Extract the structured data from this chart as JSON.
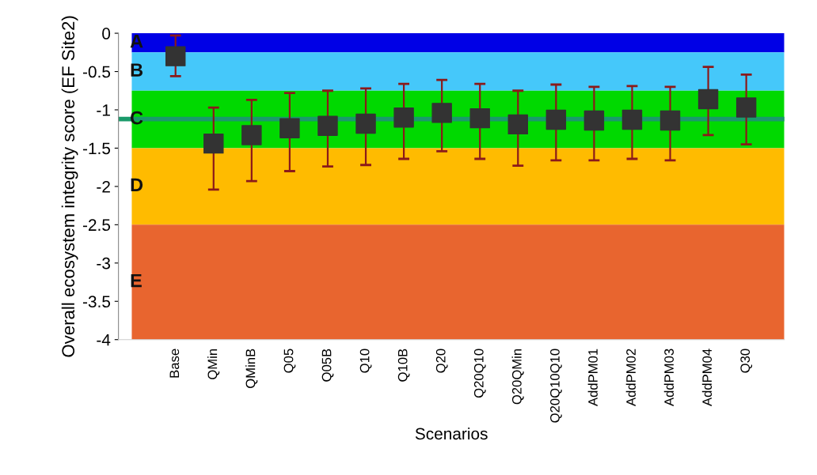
{
  "chart_data": {
    "type": "scatter",
    "xlabel": "Scenarios",
    "ylabel": "Overall ecosystem integrity score (EF Site2)",
    "categories": [
      "Base",
      "QMin",
      "QMinB",
      "Q05",
      "Q05B",
      "Q10",
      "Q10B",
      "Q20",
      "Q20Q10",
      "Q20QMin",
      "Q20Q10Q10",
      "AddPM01",
      "AddPM02",
      "AddPM03",
      "AddPM04",
      "Q30"
    ],
    "series": [
      {
        "color": "#333333",
        "marker": "square",
        "values": [
          -0.3,
          -1.44,
          -1.33,
          -1.24,
          -1.21,
          -1.18,
          -1.1,
          -1.04,
          -1.11,
          -1.19,
          -1.13,
          -1.14,
          -1.13,
          -1.14,
          -0.86,
          -0.97
        ],
        "errors": [
          [
            -0.56,
            -0.03
          ],
          [
            -2.04,
            -0.97
          ],
          [
            -1.93,
            -0.87
          ],
          [
            -1.8,
            -0.78
          ],
          [
            -1.74,
            -0.75
          ],
          [
            -1.72,
            -0.72
          ],
          [
            -1.64,
            -0.66
          ],
          [
            -1.54,
            -0.61
          ],
          [
            -1.64,
            -0.66
          ],
          [
            -1.73,
            -0.75
          ],
          [
            -1.66,
            -0.67
          ],
          [
            -1.66,
            -0.7
          ],
          [
            -1.64,
            -0.69
          ],
          [
            -1.66,
            -0.7
          ],
          [
            -1.33,
            -0.44
          ],
          [
            -1.45,
            -0.54
          ]
        ]
      }
    ],
    "ylim": [
      -4,
      0
    ],
    "yticks": [
      0,
      -0.5,
      -1,
      -1.5,
      -2,
      -2.5,
      -3,
      -3.5,
      -4
    ],
    "bands": [
      {
        "axis": "y",
        "from": 0,
        "to": -0.25,
        "label": "A",
        "color": "#0000e6"
      },
      {
        "axis": "y",
        "from": -0.25,
        "to": -0.75,
        "label": "B",
        "color": "#45c8fa"
      },
      {
        "axis": "y",
        "from": -0.75,
        "to": -1.5,
        "label": "C",
        "color": "#00d900"
      },
      {
        "axis": "y",
        "from": -1.5,
        "to": -2.5,
        "label": "D",
        "color": "#ffbb00"
      },
      {
        "axis": "y",
        "from": -2.5,
        "to": -4,
        "label": "E",
        "color": "#e8652f"
      }
    ],
    "ref_lines": [
      {
        "axis": "y",
        "value": -1.12,
        "color": "#1a9a6a",
        "line_style": "solid"
      }
    ],
    "grid": false,
    "legend": false
  }
}
